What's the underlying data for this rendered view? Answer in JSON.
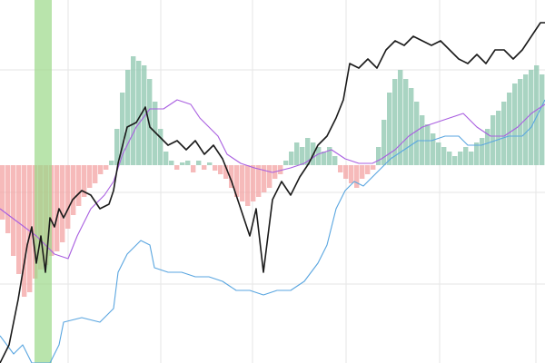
{
  "chart_data": [
    {
      "type": "histogram",
      "xlim": [
        0,
        600
      ],
      "ylim": [
        -218,
        182
      ],
      "positive_color": "#8cc5ad",
      "negative_color": "#f3a3a3",
      "bins": [
        0,
        6,
        12,
        18,
        24,
        30,
        36,
        42,
        48,
        54,
        60,
        66,
        72,
        78,
        84,
        90,
        96,
        102,
        108,
        114,
        120,
        126,
        132,
        138,
        144,
        150,
        156,
        162,
        168,
        174,
        180,
        186,
        192,
        198,
        204,
        210,
        216,
        222,
        228,
        234,
        240,
        246,
        252,
        258,
        264,
        270,
        276,
        282,
        288,
        294,
        300,
        306,
        312,
        318,
        324,
        330,
        336,
        342,
        348,
        354,
        360,
        366,
        372,
        378,
        384,
        390,
        396,
        402,
        408,
        414,
        420,
        426,
        432,
        438,
        444,
        450,
        456,
        462,
        468,
        474,
        480,
        486,
        492,
        498,
        504,
        510,
        516,
        522,
        528,
        534,
        540,
        546,
        552,
        558,
        564,
        570,
        576,
        582,
        588,
        594,
        600
      ],
      "values": [
        -60,
        -75,
        -100,
        -120,
        -145,
        -140,
        -125,
        -115,
        -110,
        -100,
        -95,
        -85,
        -70,
        -55,
        -45,
        -35,
        -25,
        -20,
        -10,
        -5,
        5,
        40,
        80,
        105,
        120,
        115,
        110,
        95,
        70,
        40,
        15,
        5,
        -5,
        3,
        5,
        -8,
        5,
        -5,
        3,
        -6,
        -10,
        -15,
        -25,
        -35,
        -40,
        -45,
        -40,
        -35,
        -30,
        -25,
        -15,
        -10,
        5,
        15,
        25,
        20,
        30,
        25,
        20,
        15,
        20,
        10,
        -8,
        -15,
        -20,
        -25,
        -15,
        -10,
        -5,
        20,
        50,
        80,
        95,
        105,
        95,
        85,
        70,
        55,
        45,
        35,
        25,
        20,
        15,
        10,
        15,
        20,
        15,
        25,
        30,
        40,
        55,
        60,
        70,
        80,
        90,
        95,
        100,
        105,
        110,
        100
      ],
      "highlight": {
        "xlim": [
          38,
          57
        ],
        "color": "#9bd889"
      }
    },
    {
      "type": "line",
      "xlim": [
        0,
        600
      ],
      "ylim": [
        0,
        400
      ],
      "xticks": [
        75,
        177,
        278,
        381,
        484,
        590
      ],
      "yticks": [
        87,
        188,
        323
      ],
      "grid": true,
      "series": [
        {
          "color": "#5aa6e0",
          "x": [
            0,
            15,
            25,
            35,
            55,
            65,
            70,
            90,
            110,
            125,
            130,
            140,
            155,
            165,
            170,
            185,
            200,
            215,
            230,
            245,
            260,
            275,
            290,
            305,
            320,
            335,
            350,
            360,
            370,
            380,
            390,
            400,
            410,
            420,
            430,
            445,
            460,
            475,
            490,
            505,
            515,
            530,
            545,
            560,
            575,
            585,
            595,
            600
          ],
          "values": [
            30,
            10,
            20,
            0,
            0,
            20,
            45,
            50,
            45,
            60,
            100,
            120,
            135,
            130,
            105,
            100,
            100,
            95,
            95,
            90,
            80,
            80,
            75,
            80,
            80,
            90,
            110,
            130,
            170,
            190,
            200,
            195,
            205,
            215,
            225,
            235,
            245,
            245,
            250,
            250,
            240,
            240,
            245,
            250,
            250,
            260,
            280,
            290
          ]
        },
        {
          "color": "#a95fe0",
          "x": [
            0,
            20,
            40,
            60,
            75,
            85,
            100,
            115,
            125,
            135,
            150,
            165,
            180,
            195,
            210,
            220,
            230,
            240,
            250,
            265,
            280,
            300,
            320,
            335,
            350,
            365,
            380,
            395,
            410,
            420,
            435,
            450,
            465,
            480,
            495,
            510,
            525,
            540,
            555,
            570,
            585,
            600
          ],
          "values": [
            170,
            155,
            140,
            120,
            115,
            140,
            170,
            185,
            200,
            230,
            260,
            280,
            280,
            290,
            285,
            270,
            260,
            250,
            230,
            220,
            215,
            210,
            215,
            220,
            230,
            235,
            225,
            220,
            220,
            225,
            235,
            250,
            260,
            265,
            270,
            275,
            260,
            250,
            250,
            260,
            275,
            285
          ]
        },
        {
          "color": "#1a1a1a",
          "x": [
            0,
            10,
            20,
            25,
            30,
            35,
            40,
            45,
            50,
            55,
            60,
            65,
            70,
            80,
            90,
            100,
            110,
            120,
            125,
            130,
            140,
            150,
            160,
            165,
            175,
            185,
            195,
            205,
            215,
            225,
            235,
            245,
            255,
            265,
            275,
            282,
            290,
            295,
            300,
            310,
            320,
            330,
            340,
            350,
            360,
            370,
            378,
            385,
            395,
            405,
            415,
            425,
            435,
            445,
            455,
            465,
            475,
            485,
            495,
            505,
            515,
            525,
            535,
            545,
            555,
            565,
            575,
            585,
            595,
            600
          ],
          "values": [
            0,
            20,
            70,
            100,
            130,
            150,
            110,
            140,
            100,
            160,
            150,
            170,
            160,
            180,
            190,
            185,
            170,
            175,
            190,
            220,
            260,
            265,
            282,
            260,
            250,
            240,
            245,
            235,
            245,
            230,
            240,
            225,
            200,
            170,
            140,
            170,
            100,
            140,
            180,
            200,
            185,
            205,
            220,
            240,
            250,
            270,
            290,
            330,
            325,
            335,
            325,
            345,
            355,
            350,
            360,
            355,
            350,
            355,
            345,
            335,
            330,
            340,
            330,
            345,
            345,
            335,
            345,
            360,
            375,
            375
          ]
        }
      ]
    }
  ]
}
